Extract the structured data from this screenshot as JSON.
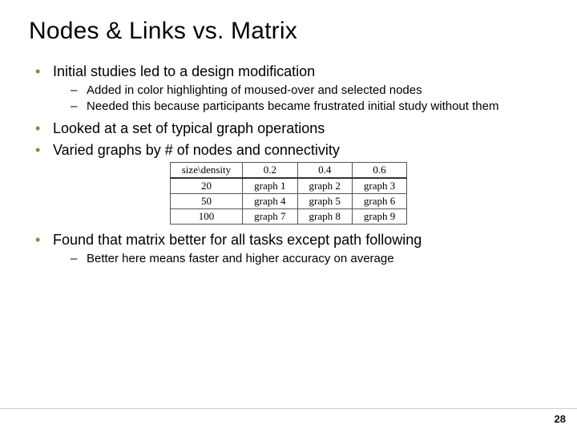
{
  "title": "Nodes & Links vs. Matrix",
  "bullet_color": "#6a9a3a",
  "bullets": {
    "b1": "Initial studies led to a design modification",
    "b1a": "Added in color highlighting of moused-over and selected nodes",
    "b1b": "Needed this because participants became frustrated initial study without them",
    "b2": "Looked at a set of typical graph operations",
    "b3": "Varied graphs by # of nodes and connectivity",
    "b4": "Found that matrix better for all tasks except path following",
    "b4a": "Better here means faster and higher accuracy on average"
  },
  "table": {
    "columns": [
      "size\\density",
      "0.2",
      "0.4",
      "0.6"
    ],
    "rows": [
      [
        "20",
        "graph 1",
        "graph 2",
        "graph 3"
      ],
      [
        "50",
        "graph 4",
        "graph 5",
        "graph 6"
      ],
      [
        "100",
        "graph 7",
        "graph 8",
        "graph 9"
      ]
    ],
    "border_color": "#555555",
    "font_family": "Times New Roman",
    "font_size": 13
  },
  "page_number": "28"
}
